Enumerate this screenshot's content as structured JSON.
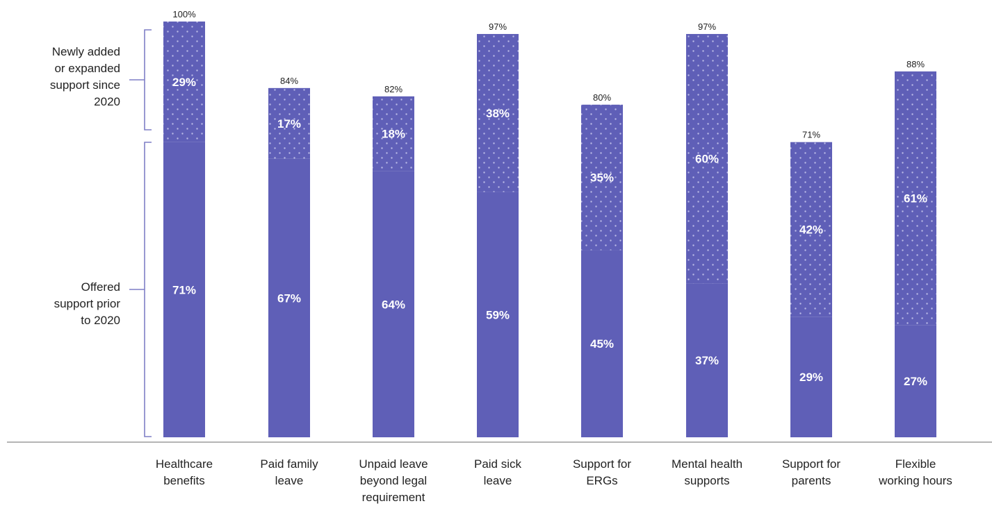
{
  "chart_data": {
    "type": "bar",
    "stacked": true,
    "ylim": [
      0,
      100
    ],
    "grid": false,
    "colors": {
      "prior": "#5f5fb7",
      "new": "#5f5fb7",
      "dots": "#b9b9e6",
      "axis": "#b5b5b5",
      "bracket": "#7f7fc6"
    },
    "categories": [
      [
        "Healthcare",
        "benefits"
      ],
      [
        "Paid family",
        "leave"
      ],
      [
        "Unpaid leave",
        "beyond legal",
        "requirement"
      ],
      [
        "Paid sick",
        "leave"
      ],
      [
        "Support for",
        "ERGs"
      ],
      [
        "Mental health",
        "supports"
      ],
      [
        "Support for",
        "parents"
      ],
      [
        "Flexible",
        "working hours"
      ]
    ],
    "series": [
      {
        "key": "prior",
        "values": [
          71,
          67,
          64,
          59,
          45,
          37,
          29,
          27
        ],
        "labels": [
          "71%",
          "67%",
          "64%",
          "59%",
          "45%",
          "37%",
          "29%",
          "27%"
        ]
      },
      {
        "key": "new",
        "values": [
          29,
          17,
          18,
          38,
          35,
          60,
          42,
          61
        ],
        "labels": [
          "29%",
          "17%",
          "18%",
          "38%",
          "35%",
          "60%",
          "42%",
          "61%"
        ]
      }
    ],
    "totals": [
      "100%",
      "84%",
      "82%",
      "97%",
      "80%",
      "97%",
      "71%",
      "88%"
    ],
    "bracket_labels": {
      "new": [
        "Newly added",
        "or expanded",
        "support since",
        "2020"
      ],
      "prior": [
        "Offered",
        "support prior",
        "to 2020"
      ]
    }
  }
}
